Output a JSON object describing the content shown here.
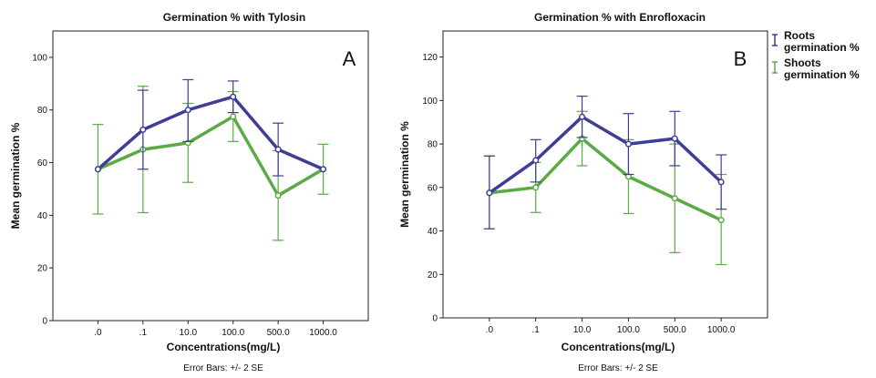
{
  "chart_data": [
    {
      "type": "line",
      "panel_letter": "A",
      "title": "Germination % with Tylosin",
      "xlabel": "Concentrations(mg/L)",
      "ylabel": "Mean germination %",
      "footnote": "Error Bars: +/- 2 SE",
      "categories": [
        ".0",
        ".1",
        "10.0",
        "100.0",
        "500.0",
        "1000.0"
      ],
      "ylim": [
        0,
        110
      ],
      "yticks": [
        0,
        20,
        40,
        60,
        80,
        100
      ],
      "grid": false,
      "series": [
        {
          "color": "#3f3d96",
          "values": [
            57.5,
            72.5,
            80,
            85,
            65,
            57.5
          ],
          "err_low": [
            57.5,
            57.5,
            68,
            79,
            55,
            57.5
          ],
          "err_high": [
            57.5,
            87.5,
            91.5,
            91,
            75,
            57.5
          ]
        },
        {
          "color": "#5aab45",
          "values": [
            57.5,
            65,
            67.5,
            77.5,
            47.5,
            57.5
          ],
          "err_low": [
            40.5,
            41,
            52.5,
            68,
            30.5,
            48
          ],
          "err_high": [
            74.5,
            89,
            82.5,
            87,
            64.5,
            67
          ]
        }
      ]
    },
    {
      "type": "line",
      "panel_letter": "B",
      "title": "Germination % with Enrofloxacin",
      "xlabel": "Concentrations(mg/L)",
      "ylabel": "Mean germination %",
      "footnote": "Error Bars: +/- 2 SE",
      "categories": [
        ".0",
        ".1",
        "10.0",
        "100.0",
        "500.0",
        "1000.0"
      ],
      "ylim": [
        0,
        132
      ],
      "yticks": [
        0,
        20,
        40,
        60,
        80,
        100,
        120
      ],
      "grid": false,
      "legend_position": "top-right-outside",
      "series": [
        {
          "name": "Roots germination %",
          "color": "#3f3d96",
          "values": [
            57.5,
            72.5,
            92.5,
            80,
            82.5,
            62.5
          ],
          "err_low": [
            41,
            62.5,
            83,
            66,
            70,
            50
          ],
          "err_high": [
            74.5,
            82,
            102,
            94,
            95,
            75
          ]
        },
        {
          "name": "Shoots germination %",
          "color": "#5aab45",
          "values": [
            57.5,
            60,
            82.5,
            65,
            55,
            45
          ],
          "err_low": [
            41,
            48.5,
            70,
            48,
            30,
            24.5
          ],
          "err_high": [
            74.5,
            71.5,
            95,
            82,
            80,
            66
          ]
        }
      ]
    }
  ]
}
